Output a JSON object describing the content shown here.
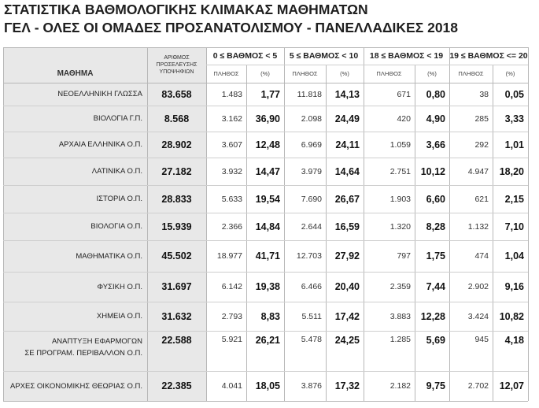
{
  "title_line1": "ΣΤΑΤΙΣΤΙΚΑ ΒΑΘΜΟΛΟΓΙΚΗΣ ΚΛΙΜΑΚΑΣ ΜΑΘΗΜΑΤΩΝ",
  "title_line2": "ΓΕΛ - ΟΛΕΣ ΟΙ ΟΜΑΔΕΣ ΠΡΟΣΑΝΑΤΟΛΙΣΜΟΥ - ΠΑΝΕΛΛΑΔΙΚΕΣ 2018",
  "table": {
    "subject_header": "ΜΑΘΗΜΑ",
    "total_header": "ΑΡΙΘΜΟΣ ΠΡΟΣΕΛΕΥΣΗΣ ΥΠΟΨΗΦΙΩΝ",
    "ranges": [
      "0 ≤ ΒΑΘΜΟΣ < 5",
      "5 ≤ ΒΑΘΜΟΣ < 10",
      "18 ≤ ΒΑΘΜΟΣ < 19",
      "19 ≤ ΒΑΘΜΟΣ <= 20"
    ],
    "count_label": "ΠΛΗΘΟΣ",
    "pct_label": "(%)",
    "rows": [
      {
        "subject": "ΝΕΟΕΛΛΗΝΙΚΗ ΓΛΩΣΣΑ",
        "total": "83.658",
        "cells": [
          [
            "1.483",
            "1,77"
          ],
          [
            "11.818",
            "14,13"
          ],
          [
            "671",
            "0,80"
          ],
          [
            "38",
            "0,05"
          ]
        ]
      },
      {
        "subject": "ΒΙΟΛΟΓΙΑ Γ.Π.",
        "total": "8.568",
        "cells": [
          [
            "3.162",
            "36,90"
          ],
          [
            "2.098",
            "24,49"
          ],
          [
            "420",
            "4,90"
          ],
          [
            "285",
            "3,33"
          ]
        ]
      },
      {
        "subject": "ΑΡΧΑΙΑ ΕΛΛΗΝΙΚΑ Ο.Π.",
        "total": "28.902",
        "cells": [
          [
            "3.607",
            "12,48"
          ],
          [
            "6.969",
            "24,11"
          ],
          [
            "1.059",
            "3,66"
          ],
          [
            "292",
            "1,01"
          ]
        ]
      },
      {
        "subject": "ΛΑΤΙΝΙΚΑ Ο.Π.",
        "total": "27.182",
        "cells": [
          [
            "3.932",
            "14,47"
          ],
          [
            "3.979",
            "14,64"
          ],
          [
            "2.751",
            "10,12"
          ],
          [
            "4.947",
            "18,20"
          ]
        ]
      },
      {
        "subject": "ΙΣΤΟΡΙΑ Ο.Π.",
        "total": "28.833",
        "cells": [
          [
            "5.633",
            "19,54"
          ],
          [
            "7.690",
            "26,67"
          ],
          [
            "1.903",
            "6,60"
          ],
          [
            "621",
            "2,15"
          ]
        ]
      },
      {
        "subject": "ΒΙΟΛΟΓΙΑ Ο.Π.",
        "total": "15.939",
        "cells": [
          [
            "2.366",
            "14,84"
          ],
          [
            "2.644",
            "16,59"
          ],
          [
            "1.320",
            "8,28"
          ],
          [
            "1.132",
            "7,10"
          ]
        ]
      },
      {
        "subject": "ΜΑΘΗΜΑΤΙΚΑ Ο.Π.",
        "total": "45.502",
        "cells": [
          [
            "18.977",
            "41,71"
          ],
          [
            "12.703",
            "27,92"
          ],
          [
            "797",
            "1,75"
          ],
          [
            "474",
            "1,04"
          ]
        ]
      },
      {
        "subject": "ΦΥΣΙΚΗ Ο.Π.",
        "total": "31.697",
        "cells": [
          [
            "6.142",
            "19,38"
          ],
          [
            "6.466",
            "20,40"
          ],
          [
            "2.359",
            "7,44"
          ],
          [
            "2.902",
            "9,16"
          ]
        ]
      },
      {
        "subject": "ΧΗΜΕΙΑ Ο.Π.",
        "total": "31.632",
        "cells": [
          [
            "2.793",
            "8,83"
          ],
          [
            "5.511",
            "17,42"
          ],
          [
            "3.883",
            "12,28"
          ],
          [
            "3.424",
            "10,82"
          ]
        ]
      },
      {
        "subject": "ΑΝΑΠΤΥΞΗ ΕΦΑΡΜΟΓΩΝ\nΣΕ ΠΡΟΓΡΑΜ. ΠΕΡΙΒΑΛΛΟΝ Ο.Π.",
        "total": "22.588",
        "cells": [
          [
            "5.921",
            "26,21"
          ],
          [
            "5.478",
            "24,25"
          ],
          [
            "1.285",
            "5,69"
          ],
          [
            "945",
            "4,18"
          ]
        ]
      },
      {
        "subject": "ΑΡΧΕΣ ΟΙΚΟΝΟΜΙΚΗΣ ΘΕΩΡΙΑΣ Ο.Π.",
        "total": "22.385",
        "cells": [
          [
            "4.041",
            "18,05"
          ],
          [
            "3.876",
            "17,32"
          ],
          [
            "2.182",
            "9,75"
          ],
          [
            "2.702",
            "12,07"
          ]
        ]
      }
    ]
  }
}
